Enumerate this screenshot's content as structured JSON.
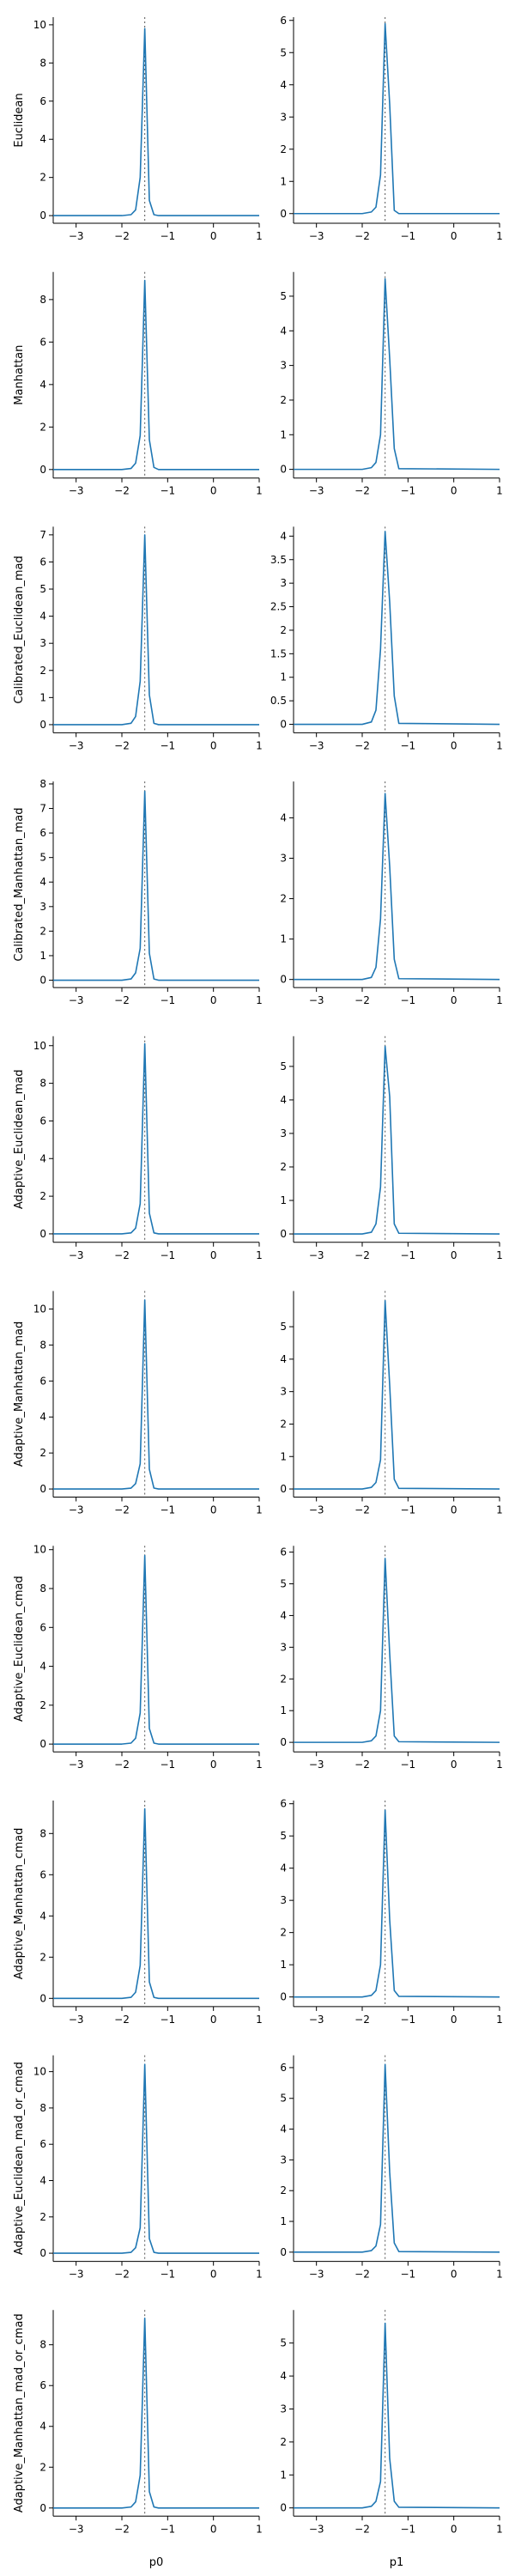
{
  "colors": {
    "line": "#1f77b4",
    "axis": "#000000",
    "reference": "#555555"
  },
  "chart_data": {
    "type": "line",
    "layout": "grid 10 rows x 2 columns",
    "columns": [
      "p0",
      "p1"
    ],
    "x_ticks": [
      -3,
      -2,
      -1,
      0,
      1
    ],
    "xlim": [
      -3.5,
      1.0
    ],
    "reference_value": -1.5,
    "reference_style": "dotted vertical line",
    "x": [
      -3.5,
      -2.0,
      -1.8,
      -1.7,
      -1.6,
      -1.5,
      -1.4,
      -1.3,
      -1.2,
      1.0
    ],
    "rows": [
      {
        "label": "Euclidean",
        "panels": [
          {
            "ylim": [
              -0.4,
              10.4
            ],
            "yticks": [
              0,
              2,
              4,
              6,
              8,
              10
            ],
            "y": [
              0,
              0,
              0.05,
              0.3,
              2.0,
              9.8,
              0.8,
              0.05,
              0,
              0
            ]
          },
          {
            "ylim": [
              -0.3,
              6.1
            ],
            "yticks": [
              0,
              1,
              2,
              3,
              4,
              5,
              6
            ],
            "y": [
              0,
              0,
              0.05,
              0.2,
              1.2,
              5.9,
              3.4,
              0.1,
              0,
              0
            ]
          }
        ]
      },
      {
        "label": "Manhattan",
        "panels": [
          {
            "ylim": [
              -0.4,
              9.3
            ],
            "yticks": [
              0,
              2,
              4,
              6,
              8
            ],
            "y": [
              0,
              0,
              0.05,
              0.3,
              1.6,
              8.9,
              1.4,
              0.1,
              0,
              0
            ]
          },
          {
            "ylim": [
              -0.25,
              5.7
            ],
            "yticks": [
              0,
              1,
              2,
              3,
              4,
              5
            ],
            "y": [
              0,
              0,
              0.05,
              0.2,
              1.0,
              5.5,
              3.2,
              0.6,
              0.02,
              0
            ]
          }
        ]
      },
      {
        "label": "Calibrated_Euclidean_mad",
        "panels": [
          {
            "ylim": [
              -0.3,
              7.3
            ],
            "yticks": [
              0,
              1,
              2,
              3,
              4,
              5,
              6,
              7
            ],
            "y": [
              0,
              0,
              0.05,
              0.3,
              1.6,
              7.0,
              1.1,
              0.05,
              0,
              0
            ]
          },
          {
            "ylim": [
              -0.18,
              4.2
            ],
            "yticks": [
              0,
              0.5,
              1.0,
              1.5,
              2.0,
              2.5,
              3.0,
              3.5,
              4.0
            ],
            "y": [
              0,
              0,
              0.05,
              0.3,
              1.6,
              4.1,
              2.6,
              0.6,
              0.02,
              0
            ]
          }
        ]
      },
      {
        "label": "Calibrated_Manhattan_mad",
        "panels": [
          {
            "ylim": [
              -0.3,
              8.1
            ],
            "yticks": [
              0,
              1,
              2,
              3,
              4,
              5,
              6,
              7,
              8
            ],
            "y": [
              0,
              0,
              0.05,
              0.3,
              1.3,
              7.7,
              1.1,
              0.05,
              0,
              0
            ]
          },
          {
            "ylim": [
              -0.2,
              4.9
            ],
            "yticks": [
              0,
              1,
              2,
              3,
              4
            ],
            "y": [
              0,
              0,
              0.05,
              0.3,
              1.5,
              4.6,
              2.8,
              0.5,
              0.02,
              0
            ]
          }
        ]
      },
      {
        "label": "Adaptive_Euclidean_mad",
        "panels": [
          {
            "ylim": [
              -0.45,
              10.5
            ],
            "yticks": [
              0,
              2,
              4,
              6,
              8,
              10
            ],
            "y": [
              0,
              0,
              0.05,
              0.3,
              1.6,
              10.1,
              1.1,
              0.05,
              0,
              0
            ]
          },
          {
            "ylim": [
              -0.25,
              5.9
            ],
            "yticks": [
              0,
              1,
              2,
              3,
              4,
              5
            ],
            "y": [
              0,
              0,
              0.05,
              0.3,
              1.4,
              5.6,
              4.1,
              0.3,
              0.02,
              0
            ]
          }
        ]
      },
      {
        "label": "Adaptive_Manhattan_mad",
        "panels": [
          {
            "ylim": [
              -0.45,
              11.0
            ],
            "yticks": [
              0,
              2,
              4,
              6,
              8,
              10
            ],
            "y": [
              0,
              0,
              0.05,
              0.3,
              1.4,
              10.5,
              1.1,
              0.05,
              0,
              0
            ]
          },
          {
            "ylim": [
              -0.25,
              6.1
            ],
            "yticks": [
              0,
              1,
              2,
              3,
              4,
              5
            ],
            "y": [
              0,
              0,
              0.05,
              0.2,
              0.9,
              5.8,
              3.2,
              0.3,
              0.02,
              0
            ]
          }
        ]
      },
      {
        "label": "Adaptive_Euclidean_cmad",
        "panels": [
          {
            "ylim": [
              -0.4,
              10.2
            ],
            "yticks": [
              0,
              2,
              4,
              6,
              8,
              10
            ],
            "y": [
              0,
              0,
              0.05,
              0.3,
              1.6,
              9.7,
              0.8,
              0.05,
              0,
              0
            ]
          },
          {
            "ylim": [
              -0.3,
              6.2
            ],
            "yticks": [
              0,
              1,
              2,
              3,
              4,
              5,
              6
            ],
            "y": [
              0,
              0,
              0.05,
              0.2,
              1.0,
              5.8,
              2.8,
              0.2,
              0.02,
              0
            ]
          }
        ]
      },
      {
        "label": "Adaptive_Manhattan_cmad",
        "panels": [
          {
            "ylim": [
              -0.4,
              9.6
            ],
            "yticks": [
              0,
              2,
              4,
              6,
              8
            ],
            "y": [
              0,
              0,
              0.05,
              0.3,
              1.6,
              9.2,
              0.8,
              0.05,
              0,
              0
            ]
          },
          {
            "ylim": [
              -0.3,
              6.1
            ],
            "yticks": [
              0,
              1,
              2,
              3,
              4,
              5,
              6
            ],
            "y": [
              0,
              0,
              0.05,
              0.2,
              1.0,
              5.8,
              2.4,
              0.2,
              0.02,
              0
            ]
          }
        ]
      },
      {
        "label": "Adaptive_Euclidean_mad_or_cmad",
        "panels": [
          {
            "ylim": [
              -0.45,
              10.9
            ],
            "yticks": [
              0,
              2,
              4,
              6,
              8,
              10
            ],
            "y": [
              0,
              0,
              0.05,
              0.3,
              1.4,
              10.4,
              0.8,
              0.05,
              0,
              0
            ]
          },
          {
            "ylim": [
              -0.3,
              6.4
            ],
            "yticks": [
              0,
              1,
              2,
              3,
              4,
              5,
              6
            ],
            "y": [
              0,
              0,
              0.05,
              0.2,
              0.9,
              6.1,
              2.6,
              0.3,
              0.02,
              0
            ]
          }
        ]
      },
      {
        "label": "Adaptive_Manhattan_mad_or_cmad",
        "panels": [
          {
            "ylim": [
              -0.4,
              9.7
            ],
            "yticks": [
              0,
              2,
              4,
              6,
              8
            ],
            "y": [
              0,
              0,
              0.05,
              0.3,
              1.6,
              9.3,
              0.8,
              0.05,
              0,
              0
            ]
          },
          {
            "ylim": [
              -0.25,
              6.0
            ],
            "yticks": [
              0,
              1,
              2,
              3,
              4,
              5
            ],
            "y": [
              0,
              0,
              0.05,
              0.2,
              0.8,
              5.6,
              1.5,
              0.2,
              0.02,
              0
            ]
          }
        ]
      }
    ]
  }
}
